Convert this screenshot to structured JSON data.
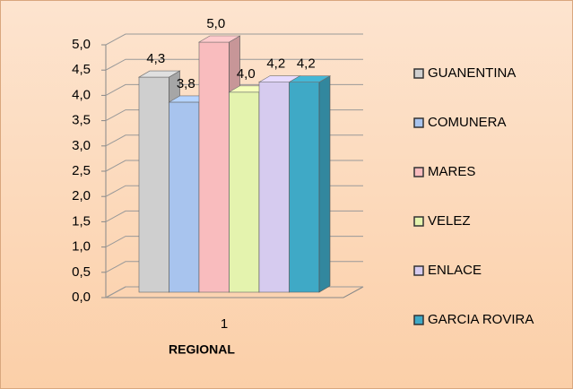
{
  "chart_data": {
    "type": "bar3d",
    "categories": [
      "1"
    ],
    "x_label": "REGIONAL",
    "series": [
      {
        "name": "GUANENTINA",
        "color": "#cfcfcf",
        "values": [
          4.3
        ],
        "value_labels": [
          "4,3"
        ]
      },
      {
        "name": "COMUNERA",
        "color": "#a8c4ee",
        "values": [
          3.8
        ],
        "value_labels": [
          "3,8"
        ]
      },
      {
        "name": "MARES",
        "color": "#f9bcbe",
        "values": [
          5.0
        ],
        "value_labels": [
          "5,0"
        ]
      },
      {
        "name": "VELEZ",
        "color": "#e4f3ae",
        "values": [
          4.0
        ],
        "value_labels": [
          "4,0"
        ]
      },
      {
        "name": "ENLACE",
        "color": "#d6cbef",
        "values": [
          4.2
        ],
        "value_labels": [
          "4,2"
        ]
      },
      {
        "name": "GARCIA ROVIRA",
        "color": "#3fa9c6",
        "values": [
          4.2
        ],
        "value_labels": [
          "4,2"
        ]
      }
    ],
    "ylim": [
      0,
      5
    ],
    "yticks": [
      {
        "value": 0,
        "label": "0,0"
      },
      {
        "value": 0.5,
        "label": "0,5"
      },
      {
        "value": 1,
        "label": "1,0"
      },
      {
        "value": 1.5,
        "label": "1,5"
      },
      {
        "value": 2,
        "label": "2,0"
      },
      {
        "value": 2.5,
        "label": "2,5"
      },
      {
        "value": 3,
        "label": "3,0"
      },
      {
        "value": 3.5,
        "label": "3,5"
      },
      {
        "value": 4,
        "label": "4,0"
      },
      {
        "value": 4.5,
        "label": "4,5"
      },
      {
        "value": 5,
        "label": "5,0"
      }
    ],
    "grid": true,
    "legend": "right"
  }
}
